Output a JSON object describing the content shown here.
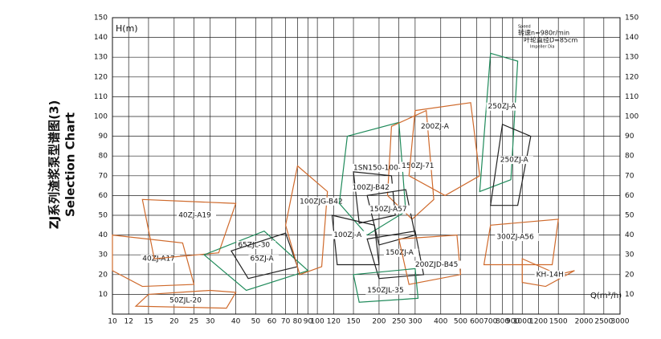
{
  "chart_data": {
    "type": "region",
    "title": "ZJ系列渣浆泵型谱图(3)",
    "subtitle": "Selection Chart",
    "y_label": "H(m)",
    "x_label": "Q(m³/h)",
    "annotations": [
      "Speed",
      "转速n=980r/min",
      "叶轮直径D=85cm",
      "Impeller Dia"
    ],
    "xscale": "log",
    "grid": true,
    "xlim": [
      10,
      3000
    ],
    "ylim": [
      0,
      150
    ],
    "xticks": [
      10,
      12,
      15,
      20,
      25,
      30,
      40,
      50,
      60,
      70,
      80,
      90,
      100,
      120,
      150,
      200,
      250,
      300,
      400,
      500,
      600,
      700,
      800,
      900,
      1000,
      1200,
      1500,
      2000,
      2500,
      3000
    ],
    "yticks": [
      10,
      20,
      30,
      40,
      50,
      60,
      70,
      80,
      90,
      100,
      110,
      120,
      130,
      140,
      150
    ],
    "regions": [
      {
        "name": "50ZJL-20",
        "color": "#cf6a2c",
        "points": [
          [
            13,
            4
          ],
          [
            36,
            3
          ],
          [
            40,
            11
          ],
          [
            30,
            12
          ],
          [
            15,
            10
          ]
        ],
        "label": [
          19,
          7
        ]
      },
      {
        "name": "40ZJ-A17",
        "color": "#cf6a2c",
        "points": [
          [
            10,
            40
          ],
          [
            22,
            36
          ],
          [
            25,
            15
          ],
          [
            14,
            14
          ],
          [
            10,
            22
          ]
        ],
        "label": [
          14,
          28
        ]
      },
      {
        "name": "40ZJ-A19",
        "color": "#cf6a2c",
        "points": [
          [
            14,
            58
          ],
          [
            40,
            56
          ],
          [
            33,
            31
          ],
          [
            16,
            28
          ]
        ],
        "label": [
          21,
          50
        ]
      },
      {
        "name": "65ZJL-30",
        "color": "#1f8a5a",
        "points": [
          [
            28,
            30
          ],
          [
            55,
            42
          ],
          [
            90,
            22
          ],
          [
            45,
            12
          ]
        ],
        "label": [
          41,
          35
        ]
      },
      {
        "name": "65ZJ-A",
        "color": "#222222",
        "points": [
          [
            38,
            32
          ],
          [
            70,
            41
          ],
          [
            80,
            24
          ],
          [
            46,
            18
          ]
        ],
        "label": [
          47,
          28
        ]
      },
      {
        "name": "100ZJG-B42",
        "color": "#cf6a2c",
        "points": [
          [
            80,
            75
          ],
          [
            112,
            62
          ],
          [
            105,
            24
          ],
          [
            82,
            20
          ],
          [
            70,
            45
          ]
        ],
        "label": [
          82,
          57
        ]
      },
      {
        "name": "1SN150-100-480",
        "color": "#1f8a5a",
        "points": [
          [
            140,
            90
          ],
          [
            250,
            97
          ],
          [
            270,
            52
          ],
          [
            175,
            40
          ],
          [
            128,
            56
          ]
        ],
        "label": [
          150,
          74
        ]
      },
      {
        "name": "150ZJ-71",
        "color": "#cf6a2c",
        "points": [
          [
            230,
            95
          ],
          [
            340,
            103
          ],
          [
            370,
            58
          ],
          [
            290,
            48
          ],
          [
            220,
            60
          ]
        ],
        "label": [
          258,
          75
        ]
      },
      {
        "name": "100ZJ-B42",
        "color": "#222222",
        "points": [
          [
            150,
            72
          ],
          [
            230,
            70
          ],
          [
            240,
            50
          ],
          [
            160,
            46
          ]
        ],
        "label": [
          148,
          64
        ]
      },
      {
        "name": "150ZJ-A57",
        "color": "#222222",
        "points": [
          [
            175,
            60
          ],
          [
            270,
            63
          ],
          [
            300,
            40
          ],
          [
            200,
            35
          ]
        ],
        "label": [
          180,
          53
        ]
      },
      {
        "name": "100ZJ-A",
        "color": "#222222",
        "points": [
          [
            118,
            50
          ],
          [
            190,
            45
          ],
          [
            200,
            25
          ],
          [
            125,
            25
          ]
        ],
        "label": [
          120,
          40
        ]
      },
      {
        "name": "150ZJ-A",
        "color": "#222222",
        "points": [
          [
            175,
            38
          ],
          [
            300,
            42
          ],
          [
            330,
            20
          ],
          [
            200,
            18
          ]
        ],
        "label": [
          215,
          31
        ]
      },
      {
        "name": "200ZJD-B45",
        "color": "#cf6a2c",
        "points": [
          [
            250,
            38
          ],
          [
            480,
            40
          ],
          [
            500,
            20
          ],
          [
            280,
            15
          ]
        ],
        "label": [
          300,
          25
        ]
      },
      {
        "name": "150ZJL-35",
        "color": "#1f8a5a",
        "points": [
          [
            150,
            20
          ],
          [
            300,
            23
          ],
          [
            310,
            8
          ],
          [
            160,
            6
          ]
        ],
        "label": [
          175,
          12
        ]
      },
      {
        "name": "200ZJ-A",
        "color": "#cf6a2c",
        "points": [
          [
            300,
            103
          ],
          [
            560,
            107
          ],
          [
            620,
            70
          ],
          [
            420,
            60
          ],
          [
            280,
            70
          ]
        ],
        "label": [
          320,
          95
        ]
      },
      {
        "name": "250ZJ-A",
        "color": "#1f8a5a",
        "points": [
          [
            700,
            132
          ],
          [
            950,
            128
          ],
          [
            880,
            68
          ],
          [
            620,
            62
          ]
        ],
        "label": [
          680,
          105
        ]
      },
      {
        "name": "250ZJ-A",
        "color": "#222222",
        "points": [
          [
            800,
            96
          ],
          [
            1100,
            90
          ],
          [
            950,
            55
          ],
          [
            700,
            55
          ]
        ],
        "label": [
          780,
          78
        ]
      },
      {
        "name": "300ZJ-A56",
        "color": "#cf6a2c",
        "points": [
          [
            700,
            45
          ],
          [
            1500,
            48
          ],
          [
            1400,
            25
          ],
          [
            650,
            25
          ]
        ],
        "label": [
          750,
          39
        ]
      },
      {
        "name": "KH-14H",
        "color": "#cf6a2c",
        "points": [
          [
            1000,
            28
          ],
          [
            1500,
            20
          ],
          [
            1800,
            22
          ],
          [
            1300,
            14
          ],
          [
            1000,
            16
          ]
        ],
        "label": [
          1170,
          20
        ]
      }
    ]
  }
}
